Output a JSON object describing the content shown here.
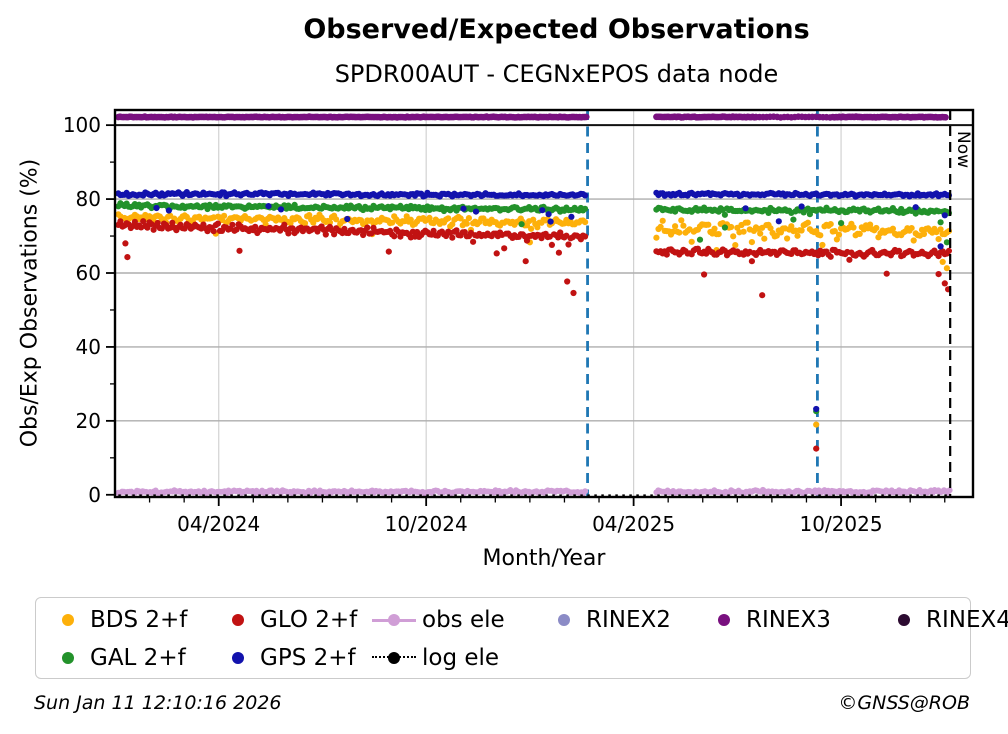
{
  "header": {
    "title": "Observed/Expected Observations",
    "subtitle": "SPDR00AUT - CEGNxEPOS data node"
  },
  "footer": {
    "timestamp": "Sun Jan 11 12:10:16 2026",
    "credit": "©GNSS@ROB"
  },
  "legend": {
    "items": [
      {
        "label": "BDS 2+f",
        "color": "#fdb00a",
        "marker": "dot",
        "row": 0,
        "col": 0
      },
      {
        "label": "GLO 2+f",
        "color": "#c11212",
        "marker": "dot",
        "row": 0,
        "col": 1
      },
      {
        "label": "obs ele",
        "color": "#d09ed6",
        "marker": "line-dot",
        "row": 0,
        "col": 2
      },
      {
        "label": "RINEX2",
        "color": "#8b8bc6",
        "marker": "dot",
        "row": 0,
        "col": 3
      },
      {
        "label": "RINEX3",
        "color": "#79107f",
        "marker": "dot",
        "row": 0,
        "col": 4
      },
      {
        "label": "RINEX4",
        "color": "#2c0b31",
        "marker": "dot",
        "row": 0,
        "col": 5
      },
      {
        "label": "GAL 2+f",
        "color": "#23922b",
        "marker": "dot",
        "row": 1,
        "col": 0
      },
      {
        "label": "GPS 2+f",
        "color": "#1212ad",
        "marker": "dot",
        "row": 1,
        "col": 1
      },
      {
        "label": "log ele",
        "color": "#000000",
        "marker": "dotted-line-dot",
        "row": 1,
        "col": 2
      }
    ]
  },
  "chart_data": {
    "type": "scatter",
    "title": "Observed/Expected Observations",
    "subtitle": "SPDR00AUT - CEGNxEPOS data node",
    "xlabel": "Month/Year",
    "ylabel": "Obs/Exp Observations (%)",
    "x_unit": "decimal_year",
    "xlim": [
      2024.0,
      2026.068
    ],
    "ylim": [
      -0.6,
      104.1
    ],
    "x_major_ticks": [
      {
        "x": 2024.25,
        "label": "04/2024"
      },
      {
        "x": 2024.75,
        "label": "10/2024"
      },
      {
        "x": 2025.25,
        "label": "04/2025"
      },
      {
        "x": 2025.75,
        "label": "10/2025"
      }
    ],
    "x_minor_step_years": 0.08333,
    "y_major_ticks": [
      {
        "y": 0,
        "label": "0"
      },
      {
        "y": 20,
        "label": "20"
      },
      {
        "y": 40,
        "label": "40"
      },
      {
        "y": 60,
        "label": "60"
      },
      {
        "y": 80,
        "label": "80"
      },
      {
        "y": 100,
        "label": "100"
      }
    ],
    "y_minor_ticks": [
      10,
      30,
      50,
      70,
      90
    ],
    "grid": {
      "h_color": "#aeaeae",
      "v_color": "#d2d2d2",
      "hline_100": {
        "y": 100,
        "color": "#111111",
        "width": 2
      }
    },
    "data_gap": {
      "x0": 2025.139,
      "x1": 2025.302
    },
    "event_lines": [
      {
        "x": 2025.139,
        "color": "#1f77b4",
        "dash": "10 6.5",
        "width": 2.8
      },
      {
        "x": 2025.693,
        "color": "#1f77b4",
        "dash": "10 6.5",
        "width": 2.8
      }
    ],
    "now_line": {
      "x": 2026.013,
      "label": "Now",
      "color": "#000000",
      "dash": "10 6",
      "width": 2.2
    },
    "series": [
      {
        "name": "obs ele",
        "color": "#d09ed6",
        "r": 3.0,
        "seed": 11,
        "segments": [
          {
            "x0": 2024.008,
            "x1": 2025.136,
            "y0": 0.8,
            "y1": 0.8,
            "jitter": 0.45,
            "step": 0.0045
          },
          {
            "x0": 2025.305,
            "x1": 2026.012,
            "y0": 0.8,
            "y1": 0.9,
            "jitter": 0.45,
            "step": 0.0045
          }
        ]
      },
      {
        "name": "log ele",
        "type": "line",
        "color": "#000000",
        "dash": "2.5 4.5",
        "width": 2.2,
        "y": -0.2,
        "x0": 2024.008,
        "x1": 2026.012
      },
      {
        "name": "BDS 2+f",
        "color": "#fdb00a",
        "r": 3.1,
        "seed": 2,
        "segments": [
          {
            "x0": 2024.008,
            "x1": 2025.136,
            "y0": 75.0,
            "y1": 73.6,
            "jitter": 0.95,
            "step": 0.005,
            "wobble": 0.5,
            "wper": 0.03,
            "dip_prob": 0.03,
            "dip_mag": 2.2
          },
          {
            "x0": 2025.305,
            "x1": 2026.012,
            "y0": 72.1,
            "y1": 71.2,
            "jitter": 1.45,
            "step": 0.005,
            "wobble": 0.9,
            "wper": 0.05,
            "dip_prob": 0.05,
            "dip_mag": 2.5
          }
        ],
        "outliers": [
          [
            2024.62,
            70.5
          ],
          [
            2025.0,
            68.3
          ],
          [
            2025.45,
            66.2
          ],
          [
            2025.52,
            65.6
          ],
          [
            2025.63,
            65.2
          ],
          [
            2025.69,
            19.0
          ],
          [
            2025.995,
            63.0
          ],
          [
            2026.005,
            61.3
          ]
        ]
      },
      {
        "name": "GLO 2+f",
        "color": "#c11212",
        "r": 3.1,
        "seed": 3,
        "segments": [
          {
            "x0": 2024.008,
            "x1": 2025.136,
            "y0": 72.9,
            "y1": 69.6,
            "jitter": 0.85,
            "step": 0.005,
            "wobble": 0.6,
            "wper": 0.018,
            "dip_prob": 0.03,
            "dip_mag": 2.3
          },
          {
            "x0": 2025.305,
            "x1": 2026.012,
            "y0": 65.7,
            "y1": 65.4,
            "jitter": 0.75,
            "step": 0.005,
            "wobble": 0.4,
            "wper": 0.03,
            "dip_prob": 0.04,
            "dip_mag": 2.2
          }
        ],
        "outliers": [
          [
            2024.025,
            68.0
          ],
          [
            2024.03,
            64.3
          ],
          [
            2024.3,
            66.0
          ],
          [
            2024.66,
            65.8
          ],
          [
            2024.92,
            65.3
          ],
          [
            2024.99,
            63.2
          ],
          [
            2025.07,
            65.5
          ],
          [
            2025.09,
            57.7
          ],
          [
            2025.105,
            54.6
          ],
          [
            2025.42,
            59.6
          ],
          [
            2025.56,
            54.0
          ],
          [
            2025.69,
            12.5
          ],
          [
            2025.86,
            59.8
          ],
          [
            2025.985,
            59.7
          ],
          [
            2026.0,
            57.2
          ],
          [
            2026.008,
            55.6
          ]
        ]
      },
      {
        "name": "GAL 2+f",
        "color": "#23922b",
        "r": 3.1,
        "seed": 4,
        "segments": [
          {
            "x0": 2024.008,
            "x1": 2025.136,
            "y0": 78.2,
            "y1": 77.2,
            "jitter": 0.65,
            "step": 0.005,
            "dip_prob": 0.02,
            "dip_mag": 2.0
          },
          {
            "x0": 2025.305,
            "x1": 2026.012,
            "y0": 77.2,
            "y1": 76.7,
            "jitter": 0.7,
            "step": 0.005,
            "dip_prob": 0.03,
            "dip_mag": 2.3
          }
        ],
        "outliers": [
          [
            2024.98,
            73.2
          ],
          [
            2025.41,
            69.0
          ],
          [
            2025.47,
            72.3
          ],
          [
            2025.69,
            22.6
          ],
          [
            2025.75,
            73.5
          ],
          [
            2026.005,
            68.3
          ]
        ]
      },
      {
        "name": "GPS 2+f",
        "color": "#1212ad",
        "r": 3.1,
        "seed": 5,
        "segments": [
          {
            "x0": 2024.008,
            "x1": 2025.136,
            "y0": 81.4,
            "y1": 81.1,
            "jitter": 0.5,
            "step": 0.005
          },
          {
            "x0": 2025.305,
            "x1": 2026.012,
            "y0": 81.3,
            "y1": 81.1,
            "jitter": 0.45,
            "step": 0.005
          }
        ],
        "outliers": [
          [
            2024.1,
            77.6
          ],
          [
            2024.13,
            76.9
          ],
          [
            2024.37,
            78.1
          ],
          [
            2024.4,
            77.2
          ],
          [
            2024.56,
            74.6
          ],
          [
            2024.84,
            77.4
          ],
          [
            2024.87,
            76.6
          ],
          [
            2025.03,
            77.0
          ],
          [
            2025.045,
            75.9
          ],
          [
            2025.05,
            73.9
          ],
          [
            2025.1,
            75.2
          ],
          [
            2025.52,
            77.5
          ],
          [
            2025.6,
            74.0
          ],
          [
            2025.655,
            78.0
          ],
          [
            2025.69,
            23.2
          ],
          [
            2025.93,
            77.8
          ],
          [
            2025.99,
            67.2
          ],
          [
            2026.0,
            75.6
          ]
        ]
      },
      {
        "name": "RINEX3",
        "color": "#79107f",
        "r": 3.3,
        "seed": 6,
        "segments": [
          {
            "x0": 2024.008,
            "x1": 2025.136,
            "y0": 102.2,
            "y1": 102.2,
            "jitter": 0.1,
            "step": 0.004
          },
          {
            "x0": 2025.305,
            "x1": 2025.545,
            "y0": 102.2,
            "y1": 102.2,
            "jitter": 0.1,
            "step": 0.004
          },
          {
            "x0": 2025.545,
            "x1": 2025.73,
            "y0": 102.2,
            "y1": 102.2,
            "jitter": 0.1,
            "step": 0.0085
          },
          {
            "x0": 2025.73,
            "x1": 2026.005,
            "y0": 102.2,
            "y1": 102.2,
            "jitter": 0.1,
            "step": 0.004
          }
        ]
      }
    ],
    "plot_notes": {
      "band_levels_pct": {
        "GPS 2+f": {
          "before_gap": 81.3,
          "after_gap": 81.2
        },
        "GAL 2+f": {
          "before_gap": 77.7,
          "after_gap": 77.0
        },
        "BDS 2+f": {
          "before_gap": 74.3,
          "after_gap": 71.6
        },
        "GLO 2+f": {
          "before_gap": 71.3,
          "after_gap": 65.6
        },
        "RINEX3": {
          "before_gap": 102.2,
          "after_gap": 102.2
        },
        "obs ele": {
          "before_gap": 0.8,
          "after_gap": 0.85
        },
        "log ele": {
          "before_gap": -0.2,
          "after_gap": -0.2
        }
      }
    }
  }
}
